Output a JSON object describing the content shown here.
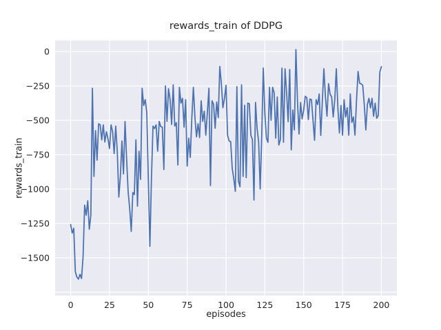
{
  "figure": {
    "title": "rewards_train of DDPG",
    "xlabel": "episodes",
    "ylabel": "rewards_train"
  },
  "chart_data": {
    "type": "line",
    "title": "rewards_train of DDPG",
    "xlabel": "episodes",
    "ylabel": "rewards_train",
    "grid": true,
    "legend_position": "none",
    "x_start": 0,
    "x_step": 1,
    "xlim": [
      -10,
      210
    ],
    "ylim": [
      -1775,
      80
    ],
    "xticks": [
      0,
      25,
      50,
      75,
      100,
      125,
      150,
      175,
      200
    ],
    "xtick_labels": [
      "0",
      "25",
      "50",
      "75",
      "100",
      "125",
      "150",
      "175",
      "200"
    ],
    "yticks": [
      0,
      -250,
      -500,
      -750,
      -1000,
      -1250,
      -1500
    ],
    "ytick_labels": [
      "0",
      "−250",
      "−500",
      "−750",
      "−1000",
      "−1250",
      "−1500"
    ],
    "extra_gridlines_y": [
      -1750
    ],
    "colors": {
      "figure_bg": "#ffffff",
      "plot_bg": "#eaeaf2",
      "grid": "#ffffff",
      "text": "#262626",
      "line": "#4c72b0"
    },
    "series": [
      {
        "name": "rewards_train",
        "color": "#4c72b0",
        "values": [
          -1258,
          -1320,
          -1285,
          -1600,
          -1640,
          -1655,
          -1620,
          -1650,
          -1490,
          -1117,
          -1190,
          -1085,
          -1292,
          -1190,
          -267,
          -908,
          -575,
          -790,
          -525,
          -533,
          -642,
          -533,
          -658,
          -583,
          -633,
          -705,
          -533,
          -583,
          -742,
          -542,
          -725,
          -1058,
          -908,
          -650,
          -890,
          -508,
          -775,
          -1020,
          -1142,
          -1308,
          -1025,
          -1040,
          -642,
          -1125,
          -725,
          -930,
          -267,
          -392,
          -350,
          -442,
          -930,
          -1417,
          -925,
          -542,
          -560,
          -533,
          -725,
          -508,
          -545,
          -550,
          -858,
          -250,
          -508,
          -270,
          -350,
          -530,
          -242,
          -542,
          -517,
          -825,
          -260,
          -375,
          -340,
          -550,
          -350,
          -833,
          -630,
          -770,
          -480,
          -260,
          -480,
          -620,
          -525,
          -625,
          -358,
          -508,
          -433,
          -608,
          -442,
          -267,
          -975,
          -358,
          -383,
          -558,
          -367,
          -480,
          -108,
          -233,
          -408,
          -342,
          -245,
          -608,
          -650,
          -655,
          -850,
          -925,
          -1017,
          -255,
          -942,
          -983,
          -242,
          -908,
          -390,
          -917,
          -375,
          -380,
          -608,
          -640,
          -1080,
          -370,
          -560,
          -658,
          -1000,
          -608,
          -120,
          -450,
          -630,
          -660,
          -260,
          -500,
          -260,
          -300,
          -630,
          -330,
          -680,
          -640,
          -120,
          -660,
          -125,
          -300,
          -510,
          -130,
          -715,
          -425,
          -570,
          15,
          -360,
          -600,
          -370,
          -490,
          -425,
          -325,
          -335,
          -495,
          -345,
          -350,
          -500,
          -645,
          -350,
          -385,
          -308,
          -610,
          -360,
          -125,
          -330,
          -470,
          -233,
          -310,
          -330,
          -475,
          -350,
          -125,
          -408,
          -592,
          -392,
          -608,
          -350,
          -475,
          -408,
          -608,
          -308,
          -515,
          -475,
          -608,
          -355,
          -145,
          -230,
          -235,
          -245,
          -385,
          -570,
          -385,
          -340,
          -410,
          -340,
          -470,
          -375,
          -485,
          -465,
          -150,
          -110
        ]
      }
    ]
  }
}
